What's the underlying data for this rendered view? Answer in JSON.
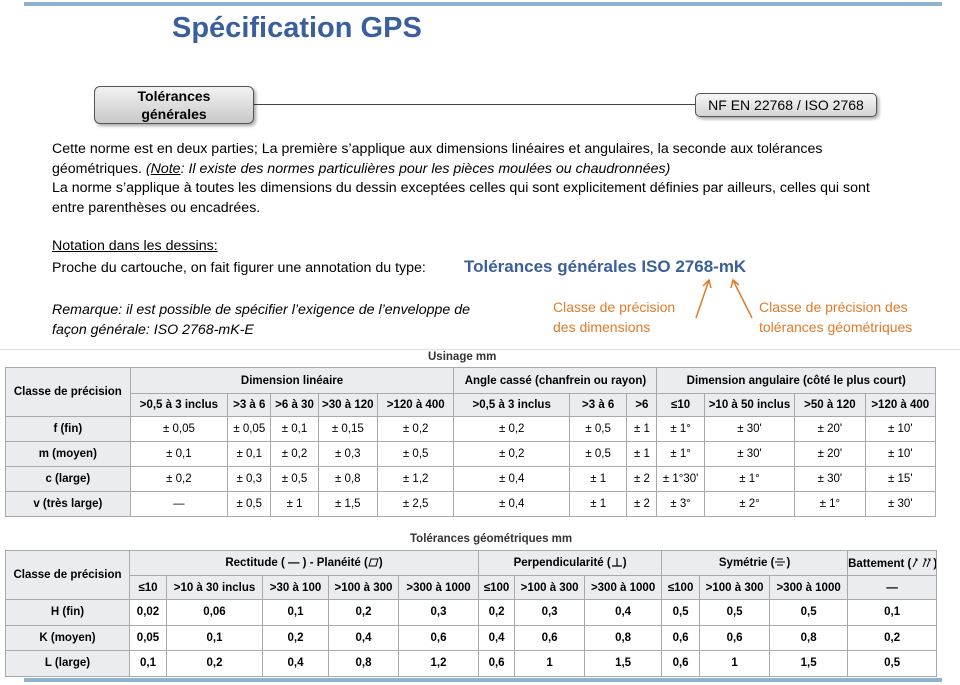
{
  "title": "Spécification GPS",
  "diagram": {
    "left_box": [
      "Tolérances",
      "générales"
    ],
    "right_box": "NF EN 22768 / ISO 2768"
  },
  "body": {
    "p1_line1": "Cette norme est en deux parties; La première s’applique aux dimensions linéaires et angulaires, la seconde aux tolérances",
    "p1_line2_normal": "géométriques. ",
    "p1_line2_italic_pre": "(",
    "p1_line2_note": "Note",
    "p1_line2_italic_post": ": Il existe des normes particulières pour les pièces moulées ou chaudronnées)",
    "p2_line1": "La norme s’applique à toutes les dimensions  du dessin exceptées celles qui sont explicitement définies par ailleurs, celles qui sont",
    "p2_line2": "entre parenthèses ou encadrées.",
    "notation_heading": "Notation dans les dessins",
    "notation_colon": ":",
    "notation_text": "Proche du cartouche, on fait figurer une annotation du type:",
    "annotation": "Tolérances générales ISO 2768-mK",
    "remark_line1": "Remarque: il est possible de spécifier l’exigence de l’enveloppe de",
    "remark_line2": "façon générale: ISO 2768-mK-E",
    "callout_dimensions": [
      "Classe de précision",
      "des dimensions"
    ],
    "callout_geometric": [
      "Classe de précision des",
      "tolérances géométriques"
    ]
  },
  "colors": {
    "title_blue": "#3b5f9b",
    "orange": "#e07b2a",
    "header_gray": "#eaecf0"
  },
  "table_usinage": {
    "caption": "Usinage mm",
    "row_header_label": "Classe de précision",
    "groups": [
      "Dimension linéaire",
      "Angle cassé (chanfrein ou rayon)",
      "Dimension angulaire (côté le plus court)"
    ],
    "subheaders": [
      ">0,5 à 3 inclus",
      ">3 à 6",
      ">6 à 30",
      ">30 à 120",
      ">120 à 400",
      ">0,5 à 3 inclus",
      ">3 à 6",
      ">6",
      "≤10",
      ">10 à 50 inclus",
      ">50 à 120",
      ">120 à 400"
    ],
    "rows": [
      {
        "label": "f (fin)",
        "cells": [
          "± 0,05",
          "± 0,05",
          "± 0,1",
          "± 0,15",
          "± 0,2",
          "± 0,2",
          "± 0,5",
          "± 1",
          "± 1°",
          "± 30'",
          "± 20'",
          "± 10'"
        ]
      },
      {
        "label": "m (moyen)",
        "cells": [
          "± 0,1",
          "± 0,1",
          "± 0,2",
          "± 0,3",
          "± 0,5",
          "± 0,2",
          "± 0,5",
          "± 1",
          "± 1°",
          "± 30'",
          "± 20'",
          "± 10'"
        ]
      },
      {
        "label": "c (large)",
        "cells": [
          "± 0,2",
          "± 0,3",
          "± 0,5",
          "± 0,8",
          "± 1,2",
          "± 0,4",
          "± 1",
          "± 2",
          "± 1°30'",
          "± 1°",
          "± 30'",
          "± 15'"
        ]
      },
      {
        "label": "v (très large)",
        "cells": [
          "—",
          "± 0,5",
          "± 1",
          "± 1,5",
          "± 2,5",
          "± 0,4",
          "± 1",
          "± 2",
          "± 3°",
          "± 2°",
          "± 1°",
          "± 30'"
        ]
      }
    ]
  },
  "table_geometrique": {
    "caption": "Tolérances géométriques mm",
    "row_header_label": "Classe de précision",
    "groups": [
      "Rectitude ( — ) - Planéité (",
      ")",
      "Perpendicularité (",
      ")",
      "Symétrie (",
      ")",
      "Battement (",
      ")"
    ],
    "subheaders": [
      "≤10",
      ">10 à 30 inclus",
      ">30 à 100",
      ">100 à 300",
      ">300 à 1000",
      "≤100",
      ">100 à 300",
      ">300 à 1000",
      "≤100",
      ">100 à 300",
      ">300 à 1000",
      "—"
    ],
    "rows": [
      {
        "label": "H (fin)",
        "cells": [
          "0,02",
          "0,06",
          "0,1",
          "0,2",
          "0,3",
          "0,2",
          "0,3",
          "0,4",
          "0,5",
          "0,5",
          "0,5",
          "0,1"
        ]
      },
      {
        "label": "K (moyen)",
        "cells": [
          "0,05",
          "0,1",
          "0,2",
          "0,4",
          "0,6",
          "0,4",
          "0,6",
          "0,8",
          "0,6",
          "0,6",
          "0,8",
          "0,2"
        ]
      },
      {
        "label": "L (large)",
        "cells": [
          "0,1",
          "0,2",
          "0,4",
          "0,8",
          "1,2",
          "0,6",
          "1",
          "1,5",
          "0,6",
          "1",
          "1,5",
          "0,5"
        ]
      }
    ]
  }
}
